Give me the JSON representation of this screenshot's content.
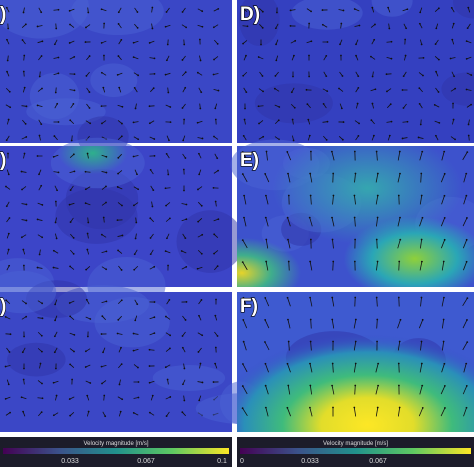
{
  "panels": [
    {
      "label": ")"
    },
    {
      "label": ")"
    },
    {
      "label": ")"
    },
    {
      "label": "D)"
    },
    {
      "label": "E)"
    },
    {
      "label": "F)"
    }
  ],
  "colorbars": [
    {
      "title": "Velocity magnitude [m/s]",
      "ticks": [
        "0.033",
        "0.067",
        "0.1"
      ]
    },
    {
      "title": "Velocity magnitude [m/s]",
      "ticks": [
        "0",
        "0.033",
        "0.067"
      ]
    }
  ]
}
